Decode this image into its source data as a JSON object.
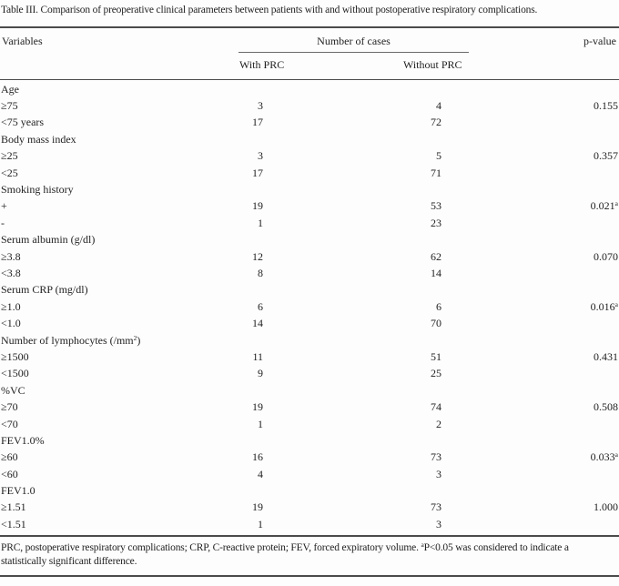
{
  "title": "Table III. Comparison of preoperative clinical parameters between patients with and without postoperative respiratory complications.",
  "header": {
    "variables": "Variables",
    "cases_group": "Number of cases",
    "with_prc": "With PRC",
    "without_prc": "Without PRC",
    "p_value": "p-value"
  },
  "table": {
    "groups": [
      {
        "label": "Age",
        "rows": [
          {
            "variable": "≥75",
            "with_prc": "3",
            "without_prc": "4",
            "p": "0.155",
            "p_sup": ""
          },
          {
            "variable": "<75 years",
            "with_prc": "17",
            "without_prc": "72",
            "p": "",
            "p_sup": ""
          }
        ]
      },
      {
        "label": "Body mass index",
        "rows": [
          {
            "variable": "≥25",
            "with_prc": "3",
            "without_prc": "5",
            "p": "0.357",
            "p_sup": ""
          },
          {
            "variable": "<25",
            "with_prc": "17",
            "without_prc": "71",
            "p": "",
            "p_sup": ""
          }
        ]
      },
      {
        "label": "Smoking history",
        "rows": [
          {
            "variable": "+",
            "with_prc": "19",
            "without_prc": "53",
            "p": "0.021",
            "p_sup": "a"
          },
          {
            "variable": "-",
            "with_prc": "1",
            "without_prc": "23",
            "p": "",
            "p_sup": ""
          }
        ]
      },
      {
        "label": "Serum albumin (g/dl)",
        "rows": [
          {
            "variable": "≥3.8",
            "with_prc": "12",
            "without_prc": "62",
            "p": "0.070",
            "p_sup": ""
          },
          {
            "variable": "<3.8",
            "with_prc": "8",
            "without_prc": "14",
            "p": "",
            "p_sup": ""
          }
        ]
      },
      {
        "label": "Serum CRP (mg/dl)",
        "rows": [
          {
            "variable": "≥1.0",
            "with_prc": "6",
            "without_prc": "6",
            "p": "0.016",
            "p_sup": "a"
          },
          {
            "variable": "<1.0",
            "with_prc": "14",
            "without_prc": "70",
            "p": "",
            "p_sup": ""
          }
        ]
      },
      {
        "label": "Number of lymphocytes (/mm",
        "label_sup": "2",
        "label_tail": ")",
        "rows": [
          {
            "variable": "≥1500",
            "with_prc": "11",
            "without_prc": "51",
            "p": "0.431",
            "p_sup": ""
          },
          {
            "variable": "<1500",
            "with_prc": "9",
            "without_prc": "25",
            "p": "",
            "p_sup": ""
          }
        ]
      },
      {
        "label": "%VC",
        "rows": [
          {
            "variable": "≥70",
            "with_prc": "19",
            "without_prc": "74",
            "p": "0.508",
            "p_sup": ""
          },
          {
            "variable": "<70",
            "with_prc": "1",
            "without_prc": "2",
            "p": "",
            "p_sup": ""
          }
        ]
      },
      {
        "label": "FEV1.0%",
        "rows": [
          {
            "variable": "≥60",
            "with_prc": "16",
            "without_prc": "73",
            "p": "0.033",
            "p_sup": "a"
          },
          {
            "variable": "<60",
            "with_prc": "4",
            "without_prc": "3",
            "p": "",
            "p_sup": ""
          }
        ]
      },
      {
        "label": "FEV1.0",
        "rows": [
          {
            "variable": "≥1.51",
            "with_prc": "19",
            "without_prc": "73",
            "p": "1.000",
            "p_sup": ""
          },
          {
            "variable": "<1.51",
            "with_prc": "1",
            "without_prc": "3",
            "p": "",
            "p_sup": ""
          }
        ]
      }
    ]
  },
  "footnote": {
    "line1_part1": "PRC, postoperative respiratory complications; CRP, C-reactive protein; FEV, forced expiratory volume. ",
    "line1_sup": "a",
    "line1_part2": "P<0.05 was considered to indicate a",
    "line2": "statistically significant difference."
  }
}
